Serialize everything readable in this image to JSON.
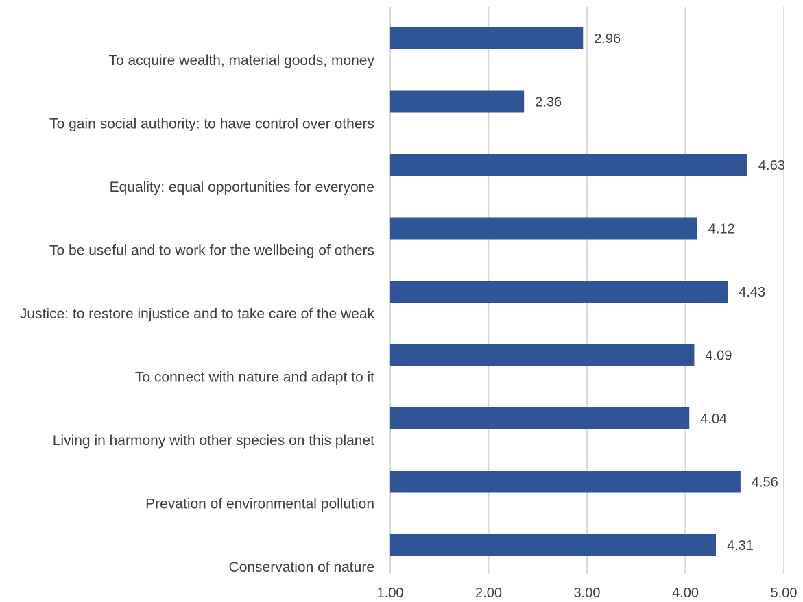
{
  "chart_data": {
    "type": "bar",
    "orientation": "horizontal",
    "categories": [
      "To acquire wealth, material goods, money",
      "To gain social authority: to have control over others",
      "Equality: equal opportunities for everyone",
      "To be useful and to work for the wellbeing of others",
      "Justice: to restore injustice and to take care of the weak",
      "To connect with nature and adapt to it",
      "Living in harmony with other species on this planet",
      "Prevation of environmental pollution",
      "Conservation of nature"
    ],
    "values": [
      2.96,
      2.36,
      4.63,
      4.12,
      4.43,
      4.09,
      4.04,
      4.56,
      4.31
    ],
    "data_labels": [
      "2.96",
      "2.36",
      "4.63",
      "4.12",
      "4.43",
      "4.09",
      "4.04",
      "4.56",
      "4.31"
    ],
    "x_ticks": [
      "1.00",
      "2.00",
      "3.00",
      "4.00",
      "5.00"
    ],
    "xlim": [
      1,
      5
    ],
    "grid": true,
    "legend": false,
    "colors": {
      "bar": "#2f5597",
      "grid": "#d9d9d9",
      "text": "#404040"
    }
  }
}
